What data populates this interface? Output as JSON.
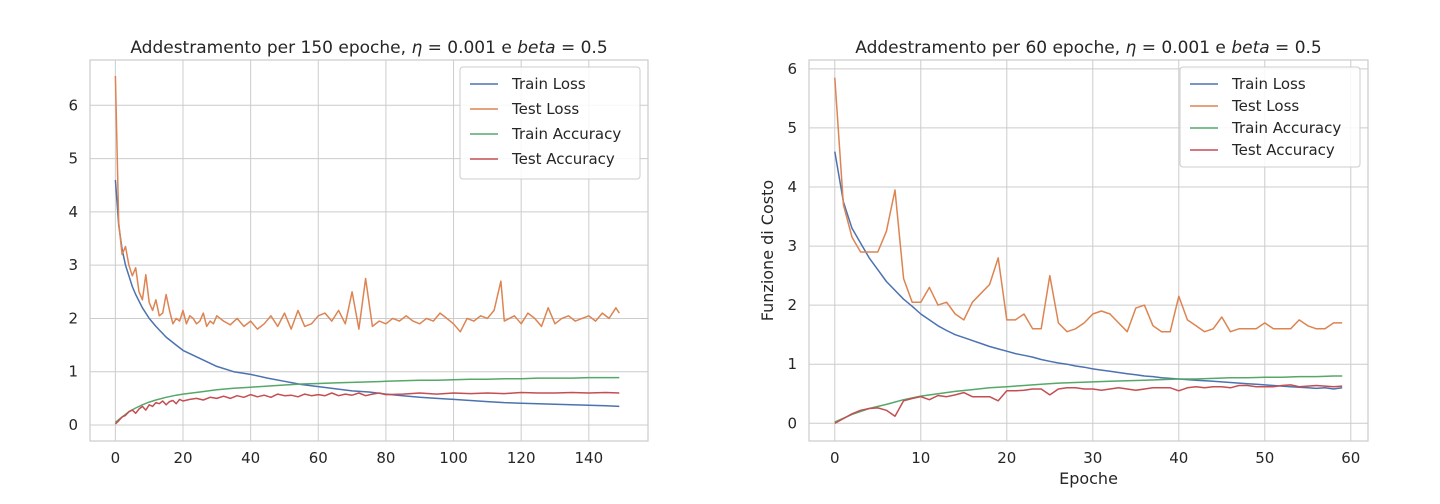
{
  "figure": {
    "palette": {
      "train_loss": "#4c72b0",
      "test_loss": "#dd8452",
      "train_acc": "#55a868",
      "test_acc": "#c44e52"
    }
  },
  "chart_data": [
    {
      "type": "line",
      "title": "Addestramento per 150 epoche, η = 0.001 e beta = 0.5",
      "xlabel": "",
      "ylabel": "",
      "xlim": [
        -7.5,
        157.5
      ],
      "ylim": [
        -0.3,
        6.85
      ],
      "xticks": [
        0,
        20,
        40,
        60,
        80,
        100,
        120,
        140
      ],
      "yticks": [
        0,
        1,
        2,
        3,
        4,
        5,
        6
      ],
      "grid": true,
      "legend": "top-right",
      "series": [
        {
          "name": "Train Loss",
          "color": "#4c72b0",
          "x": [
            0,
            1,
            2,
            3,
            4,
            5,
            6,
            8,
            10,
            12,
            15,
            18,
            20,
            25,
            30,
            35,
            40,
            45,
            50,
            55,
            60,
            65,
            70,
            75,
            80,
            85,
            90,
            95,
            100,
            105,
            110,
            115,
            120,
            125,
            130,
            135,
            140,
            145,
            149
          ],
          "y": [
            4.6,
            3.75,
            3.3,
            3.0,
            2.8,
            2.6,
            2.45,
            2.2,
            2.0,
            1.85,
            1.65,
            1.5,
            1.4,
            1.25,
            1.1,
            1.0,
            0.95,
            0.88,
            0.82,
            0.76,
            0.72,
            0.68,
            0.64,
            0.62,
            0.58,
            0.55,
            0.52,
            0.5,
            0.48,
            0.46,
            0.44,
            0.42,
            0.41,
            0.4,
            0.39,
            0.38,
            0.37,
            0.36,
            0.35
          ]
        },
        {
          "name": "Test Loss",
          "color": "#dd8452",
          "x": [
            0,
            1,
            2,
            3,
            4,
            5,
            6,
            7,
            8,
            9,
            10,
            11,
            12,
            13,
            14,
            15,
            16,
            17,
            18,
            19,
            20,
            21,
            22,
            23,
            24,
            25,
            26,
            27,
            28,
            29,
            30,
            32,
            34,
            36,
            38,
            40,
            42,
            44,
            46,
            48,
            50,
            52,
            54,
            56,
            58,
            60,
            62,
            64,
            66,
            68,
            70,
            72,
            74,
            76,
            78,
            80,
            82,
            84,
            86,
            88,
            90,
            92,
            94,
            96,
            98,
            100,
            102,
            104,
            106,
            108,
            110,
            112,
            114,
            115,
            118,
            120,
            122,
            124,
            126,
            128,
            130,
            132,
            134,
            136,
            138,
            140,
            142,
            144,
            146,
            148,
            149
          ],
          "y": [
            6.55,
            3.8,
            3.2,
            3.35,
            3.0,
            2.8,
            2.95,
            2.5,
            2.35,
            2.82,
            2.3,
            2.15,
            2.35,
            2.05,
            2.1,
            2.45,
            2.15,
            1.9,
            2.0,
            1.95,
            2.15,
            1.9,
            2.05,
            2.0,
            1.9,
            1.95,
            2.1,
            1.85,
            1.95,
            1.9,
            2.05,
            1.95,
            1.88,
            2.0,
            1.85,
            1.95,
            1.8,
            1.9,
            2.05,
            1.85,
            2.1,
            1.8,
            2.15,
            1.85,
            1.9,
            2.05,
            2.1,
            1.95,
            2.15,
            1.9,
            2.5,
            1.8,
            2.75,
            1.85,
            1.95,
            1.9,
            2.0,
            1.95,
            2.05,
            1.95,
            1.9,
            2.0,
            1.95,
            2.1,
            2.0,
            1.9,
            1.75,
            2.0,
            1.95,
            2.05,
            2.0,
            2.15,
            2.7,
            1.95,
            2.05,
            1.9,
            2.1,
            2.0,
            1.85,
            2.2,
            1.9,
            2.0,
            2.05,
            1.95,
            2.0,
            2.05,
            1.95,
            2.1,
            2.0,
            2.2,
            2.1
          ]
        },
        {
          "name": "Train Accuracy",
          "color": "#55a868",
          "x": [
            0,
            2,
            4,
            6,
            8,
            10,
            12,
            15,
            18,
            20,
            25,
            30,
            35,
            40,
            45,
            50,
            55,
            60,
            65,
            70,
            75,
            80,
            85,
            90,
            95,
            100,
            105,
            110,
            115,
            120,
            125,
            130,
            135,
            140,
            145,
            149
          ],
          "y": [
            0.05,
            0.15,
            0.25,
            0.32,
            0.38,
            0.43,
            0.47,
            0.52,
            0.56,
            0.58,
            0.62,
            0.66,
            0.69,
            0.71,
            0.73,
            0.75,
            0.77,
            0.78,
            0.79,
            0.8,
            0.81,
            0.82,
            0.83,
            0.84,
            0.84,
            0.85,
            0.86,
            0.86,
            0.87,
            0.87,
            0.88,
            0.88,
            0.88,
            0.89,
            0.89,
            0.89
          ]
        },
        {
          "name": "Test Accuracy",
          "color": "#c44e52",
          "x": [
            0,
            1,
            2,
            3,
            4,
            5,
            6,
            7,
            8,
            9,
            10,
            11,
            12,
            13,
            14,
            15,
            16,
            17,
            18,
            19,
            20,
            22,
            24,
            26,
            28,
            30,
            32,
            34,
            36,
            38,
            40,
            42,
            44,
            46,
            48,
            50,
            52,
            54,
            56,
            58,
            60,
            62,
            64,
            66,
            68,
            70,
            72,
            74,
            76,
            78,
            80,
            85,
            90,
            95,
            100,
            105,
            110,
            115,
            120,
            125,
            130,
            135,
            140,
            145,
            149
          ],
          "y": [
            0.02,
            0.08,
            0.15,
            0.18,
            0.25,
            0.28,
            0.22,
            0.3,
            0.35,
            0.28,
            0.38,
            0.35,
            0.42,
            0.4,
            0.45,
            0.38,
            0.44,
            0.46,
            0.4,
            0.48,
            0.45,
            0.48,
            0.5,
            0.47,
            0.52,
            0.5,
            0.54,
            0.5,
            0.55,
            0.52,
            0.57,
            0.53,
            0.56,
            0.52,
            0.58,
            0.55,
            0.56,
            0.53,
            0.58,
            0.55,
            0.57,
            0.55,
            0.6,
            0.55,
            0.58,
            0.56,
            0.6,
            0.55,
            0.58,
            0.6,
            0.57,
            0.58,
            0.6,
            0.58,
            0.6,
            0.59,
            0.6,
            0.59,
            0.61,
            0.6,
            0.6,
            0.61,
            0.6,
            0.61,
            0.6
          ]
        }
      ]
    },
    {
      "type": "line",
      "title": "Addestramento per 60 epoche, η = 0.001 e beta = 0.5",
      "xlabel": "Epoche",
      "ylabel": "Funzione di Costo",
      "xlim": [
        -3,
        62
      ],
      "ylim": [
        -0.3,
        6.15
      ],
      "xticks": [
        0,
        10,
        20,
        30,
        40,
        50,
        60
      ],
      "yticks": [
        0,
        1,
        2,
        3,
        4,
        5,
        6
      ],
      "grid": true,
      "legend": "top-right",
      "series": [
        {
          "name": "Train Loss",
          "color": "#4c72b0",
          "x": [
            0,
            1,
            2,
            3,
            4,
            5,
            6,
            7,
            8,
            9,
            10,
            11,
            12,
            13,
            14,
            15,
            16,
            17,
            18,
            19,
            20,
            21,
            22,
            23,
            24,
            25,
            26,
            27,
            28,
            29,
            30,
            31,
            32,
            33,
            34,
            35,
            36,
            37,
            38,
            39,
            40,
            41,
            42,
            43,
            44,
            45,
            46,
            47,
            48,
            49,
            50,
            51,
            52,
            53,
            54,
            55,
            56,
            57,
            58,
            59
          ],
          "y": [
            4.6,
            3.75,
            3.3,
            3.05,
            2.8,
            2.6,
            2.4,
            2.25,
            2.1,
            1.98,
            1.85,
            1.75,
            1.65,
            1.57,
            1.5,
            1.45,
            1.4,
            1.35,
            1.3,
            1.26,
            1.22,
            1.18,
            1.15,
            1.12,
            1.08,
            1.05,
            1.02,
            1.0,
            0.97,
            0.95,
            0.92,
            0.9,
            0.88,
            0.86,
            0.84,
            0.82,
            0.8,
            0.79,
            0.77,
            0.76,
            0.75,
            0.74,
            0.73,
            0.72,
            0.71,
            0.7,
            0.69,
            0.68,
            0.67,
            0.66,
            0.65,
            0.64,
            0.63,
            0.62,
            0.61,
            0.6,
            0.59,
            0.6,
            0.58,
            0.6
          ]
        },
        {
          "name": "Test Loss",
          "color": "#dd8452",
          "x": [
            0,
            1,
            2,
            3,
            4,
            5,
            6,
            7,
            8,
            9,
            10,
            11,
            12,
            13,
            14,
            15,
            16,
            17,
            18,
            19,
            20,
            21,
            22,
            23,
            24,
            25,
            26,
            27,
            28,
            29,
            30,
            31,
            32,
            33,
            34,
            35,
            36,
            37,
            38,
            39,
            40,
            41,
            42,
            43,
            44,
            45,
            46,
            47,
            48,
            49,
            50,
            51,
            52,
            53,
            54,
            55,
            56,
            57,
            58,
            59
          ],
          "y": [
            5.85,
            3.7,
            3.15,
            2.9,
            2.9,
            2.9,
            3.25,
            3.95,
            2.45,
            2.05,
            2.05,
            2.3,
            2.0,
            2.05,
            1.85,
            1.75,
            2.05,
            2.2,
            2.35,
            2.8,
            1.75,
            1.75,
            1.85,
            1.6,
            1.6,
            2.5,
            1.7,
            1.55,
            1.6,
            1.7,
            1.85,
            1.9,
            1.85,
            1.7,
            1.55,
            1.95,
            2.0,
            1.65,
            1.55,
            1.55,
            2.15,
            1.75,
            1.65,
            1.55,
            1.6,
            1.8,
            1.55,
            1.6,
            1.6,
            1.6,
            1.7,
            1.6,
            1.6,
            1.6,
            1.75,
            1.65,
            1.6,
            1.6,
            1.7,
            1.7
          ]
        },
        {
          "name": "Train Accuracy",
          "color": "#55a868",
          "x": [
            0,
            2,
            4,
            6,
            8,
            10,
            12,
            14,
            16,
            18,
            20,
            22,
            24,
            26,
            28,
            30,
            32,
            34,
            36,
            38,
            40,
            42,
            44,
            46,
            48,
            50,
            52,
            54,
            56,
            58,
            59
          ],
          "y": [
            0.02,
            0.15,
            0.25,
            0.32,
            0.4,
            0.46,
            0.5,
            0.54,
            0.57,
            0.6,
            0.62,
            0.64,
            0.66,
            0.68,
            0.69,
            0.7,
            0.71,
            0.72,
            0.73,
            0.74,
            0.75,
            0.75,
            0.76,
            0.77,
            0.77,
            0.78,
            0.78,
            0.79,
            0.79,
            0.8,
            0.8
          ]
        },
        {
          "name": "Test Accuracy",
          "color": "#c44e52",
          "x": [
            0,
            1,
            2,
            3,
            4,
            5,
            6,
            7,
            8,
            9,
            10,
            11,
            12,
            13,
            14,
            15,
            16,
            17,
            18,
            19,
            20,
            21,
            22,
            23,
            24,
            25,
            26,
            27,
            28,
            29,
            30,
            31,
            32,
            33,
            34,
            35,
            36,
            37,
            38,
            39,
            40,
            41,
            42,
            43,
            44,
            45,
            46,
            47,
            48,
            49,
            50,
            51,
            52,
            53,
            54,
            55,
            56,
            57,
            58,
            59
          ],
          "y": [
            0.0,
            0.08,
            0.16,
            0.22,
            0.25,
            0.26,
            0.22,
            0.12,
            0.38,
            0.42,
            0.45,
            0.4,
            0.47,
            0.45,
            0.48,
            0.52,
            0.45,
            0.45,
            0.45,
            0.38,
            0.55,
            0.55,
            0.56,
            0.58,
            0.58,
            0.48,
            0.58,
            0.6,
            0.6,
            0.58,
            0.58,
            0.56,
            0.58,
            0.6,
            0.58,
            0.56,
            0.58,
            0.6,
            0.6,
            0.6,
            0.55,
            0.6,
            0.62,
            0.6,
            0.62,
            0.62,
            0.6,
            0.64,
            0.64,
            0.62,
            0.62,
            0.62,
            0.64,
            0.65,
            0.62,
            0.63,
            0.64,
            0.63,
            0.62,
            0.63
          ]
        }
      ]
    }
  ]
}
